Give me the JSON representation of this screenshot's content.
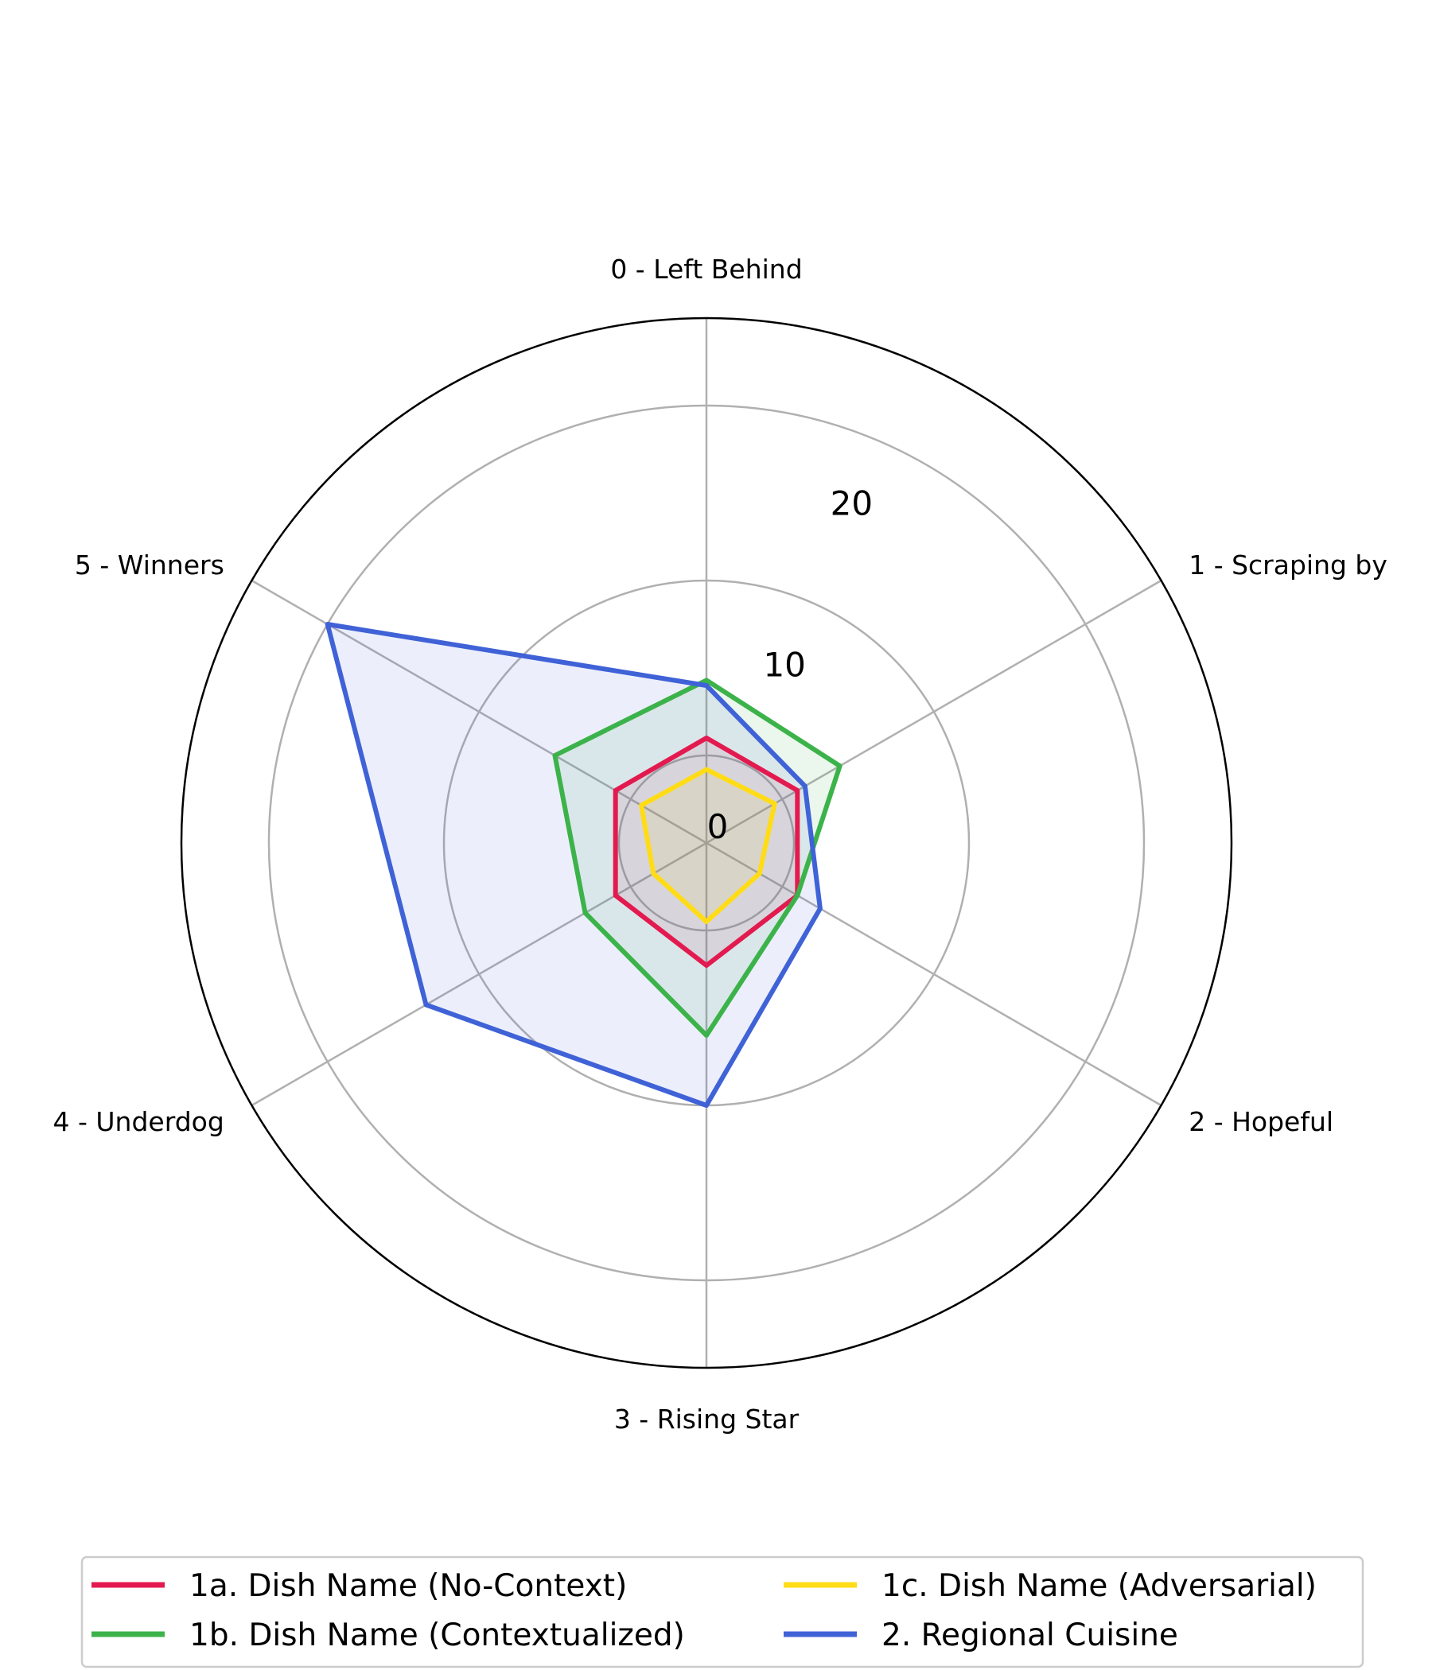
{
  "chart_data": {
    "type": "radar",
    "title": "",
    "axes": [
      "0 - Left Behind",
      "1 - Scraping by",
      "2 - Hopeful",
      "3 - Rising Star",
      "4 - Underdog",
      "5 - Winners"
    ],
    "r_ticks": [
      0,
      10,
      20
    ],
    "r_tick_labels": [
      "0",
      "10",
      "20"
    ],
    "r_max": 30,
    "grid": true,
    "legend_position": "bottom",
    "series": [
      {
        "name": "1a. Dish Name (No-Context)",
        "color": "#e31a4f",
        "values": [
          6,
          6,
          6,
          7,
          6,
          6
        ]
      },
      {
        "name": "1b. Dish Name (Contextualized)",
        "color": "#3cb34a",
        "values": [
          9.3,
          8.8,
          6,
          11,
          8,
          10
        ]
      },
      {
        "name": "1c. Dish Name (Adversarial)",
        "color": "#ffdc16",
        "values": [
          4.2,
          4.5,
          3.5,
          4.5,
          3.5,
          4.3
        ]
      },
      {
        "name": "2. Regional Cuisine",
        "color": "#4062d7",
        "values": [
          9,
          6.5,
          7.5,
          15,
          18.5,
          25
        ]
      }
    ]
  }
}
